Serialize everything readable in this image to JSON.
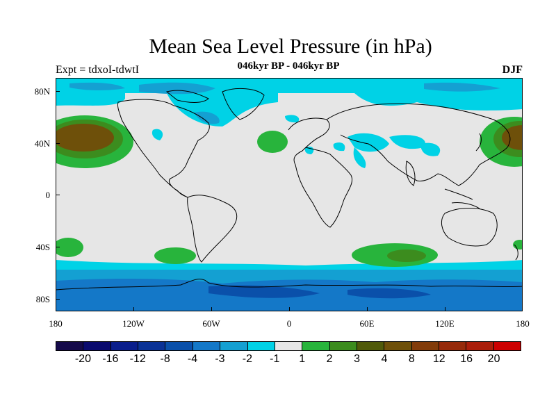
{
  "title": "Mean Sea Level Pressure (in hPa)",
  "subtitle": "046kyr BP - 046kyr BP",
  "experiment": "Expt = tdxoI-tdwtI",
  "season": "DJF",
  "map": {
    "projection": "cylindrical-equidistant",
    "lon_range": [
      -180,
      180
    ],
    "lat_range": [
      -90,
      90
    ],
    "background_color": "#e6e6e6",
    "coastline_color": "#000000",
    "lat_ticks": [
      {
        "value": 80,
        "label": "80N"
      },
      {
        "value": 40,
        "label": "40N"
      },
      {
        "value": 0,
        "label": "0"
      },
      {
        "value": -40,
        "label": "40S"
      },
      {
        "value": -80,
        "label": "80S"
      }
    ],
    "lon_ticks": [
      {
        "value": -180,
        "label": "180"
      },
      {
        "value": -120,
        "label": "120W"
      },
      {
        "value": -60,
        "label": "60W"
      },
      {
        "value": 0,
        "label": "0"
      },
      {
        "value": 60,
        "label": "60E"
      },
      {
        "value": 120,
        "label": "120E"
      },
      {
        "value": 180,
        "label": "180"
      }
    ]
  },
  "colorbar": {
    "colors": [
      "#150a4a",
      "#0a0a6e",
      "#0a1e8c",
      "#0a3296",
      "#0a50aa",
      "#1478c8",
      "#14a0d2",
      "#00d2e6",
      "#e6e6e6",
      "#28b43c",
      "#3c8c1e",
      "#505a0a",
      "#6e500a",
      "#823c0a",
      "#962a0a",
      "#aa1e0a",
      "#cc0000"
    ],
    "labels": [
      "-20",
      "-16",
      "-12",
      "-8",
      "-4",
      "-3",
      "-2",
      "-1",
      "1",
      "2",
      "3",
      "4",
      "8",
      "12",
      "16",
      "20"
    ]
  },
  "regions": [
    {
      "name": "arctic-low",
      "level": "-2",
      "color": "#00d2e6"
    },
    {
      "name": "southern-ocean-low",
      "level": "-3",
      "color": "#14a0d2"
    },
    {
      "name": "antarctic-low",
      "level": "-4",
      "color": "#1478c8"
    },
    {
      "name": "north-pacific-high",
      "level": "4",
      "color": "#6e500a"
    },
    {
      "name": "north-atlantic-high",
      "level": "2",
      "color": "#28b43c"
    },
    {
      "name": "south-indian-high",
      "level": "3",
      "color": "#3c8c1e"
    }
  ]
}
